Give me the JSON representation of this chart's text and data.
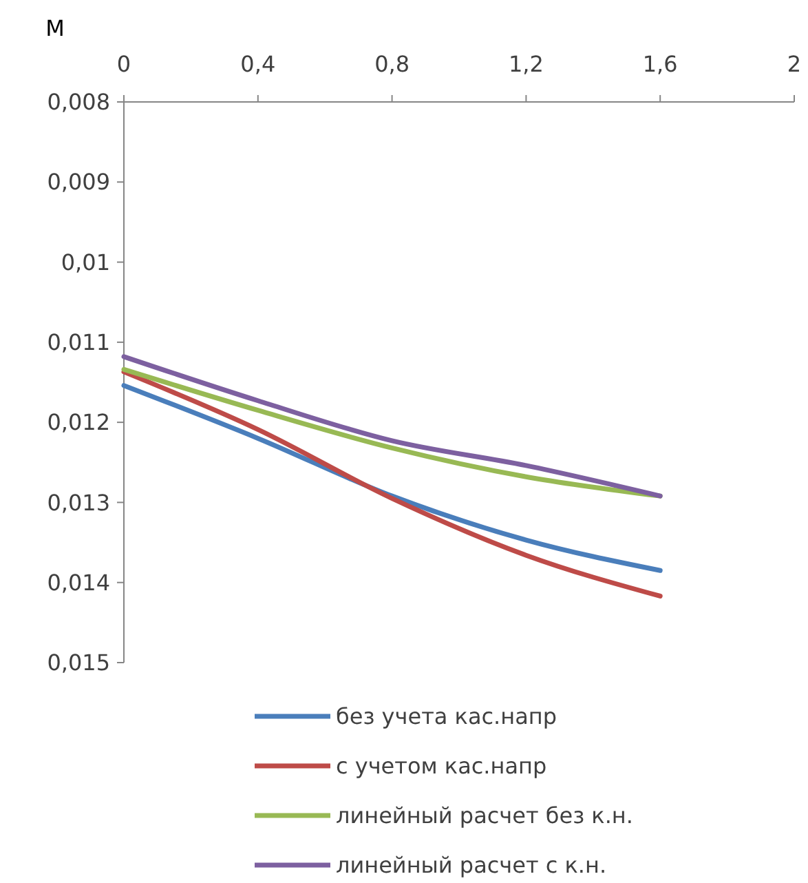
{
  "chart_data": {
    "type": "line",
    "ylabel": "M",
    "x": [
      0,
      0.4,
      0.8,
      1.2,
      1.6
    ],
    "xlim": [
      0,
      2
    ],
    "xticks": [
      0,
      {
        "value": 0.4,
        "label": "0,4"
      },
      {
        "value": 0.8,
        "label": "0,8"
      },
      {
        "value": 1.2,
        "label": "1,2"
      },
      {
        "value": 1.6,
        "label": "1,6"
      },
      2
    ],
    "ylim": [
      0.015,
      0.008
    ],
    "yticks": [
      {
        "value": 0.008,
        "label": "0,008"
      },
      {
        "value": 0.009,
        "label": "0,009"
      },
      {
        "value": 0.01,
        "label": "0,01"
      },
      {
        "value": 0.011,
        "label": "0,011"
      },
      {
        "value": 0.012,
        "label": "0,012"
      },
      {
        "value": 0.013,
        "label": "0,013"
      },
      {
        "value": 0.014,
        "label": "0,014"
      },
      {
        "value": 0.015,
        "label": "0,015"
      }
    ],
    "grid": false,
    "legend": "bottom",
    "marker": "none",
    "line_style": "solid",
    "series": [
      {
        "name": "без учета кас.напр",
        "color": "#4a7ebb",
        "values": [
          0.01154,
          0.0122,
          0.01292,
          0.01347,
          0.01385
        ]
      },
      {
        "name": "с учетом кас.напр",
        "color": "#be4b48",
        "values": [
          0.01137,
          0.01209,
          0.01295,
          0.01366,
          0.01417
        ]
      },
      {
        "name": "линейный расчет без к.н.",
        "color": "#98b954",
        "values": [
          0.01134,
          0.01185,
          0.01232,
          0.01268,
          0.01292
        ]
      },
      {
        "name": "линейный расчет с к.н.",
        "color": "#7d60a0",
        "values": [
          0.01118,
          0.01173,
          0.01223,
          0.01254,
          0.01292
        ]
      }
    ]
  }
}
